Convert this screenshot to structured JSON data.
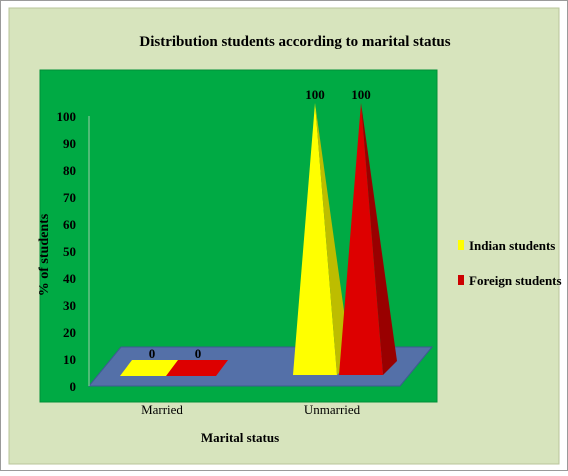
{
  "chart_data": {
    "type": "bar",
    "title": "Distribution students according to  marital status",
    "xlabel": "Marital status",
    "ylabel": "% of students",
    "categories": [
      "Married",
      "Unmarried"
    ],
    "series": [
      {
        "name": "Indian students",
        "values": [
          0,
          100
        ],
        "color": "#ffff00"
      },
      {
        "name": "Foreign students",
        "values": [
          0,
          100
        ],
        "color": "#dd0000"
      }
    ],
    "ylim": [
      0,
      100
    ],
    "yticks": [
      "0",
      "10",
      "20",
      "30",
      "40",
      "50",
      "60",
      "70",
      "80",
      "90",
      "100"
    ],
    "data_labels": [
      [
        "0",
        "100"
      ],
      [
        "0",
        "100"
      ]
    ],
    "grid": false,
    "legend": "right",
    "style": "3d-pyramid",
    "colors": {
      "background": "#d7e4bd",
      "plot_area": "#00aa44",
      "floor": "#5470a8"
    }
  }
}
